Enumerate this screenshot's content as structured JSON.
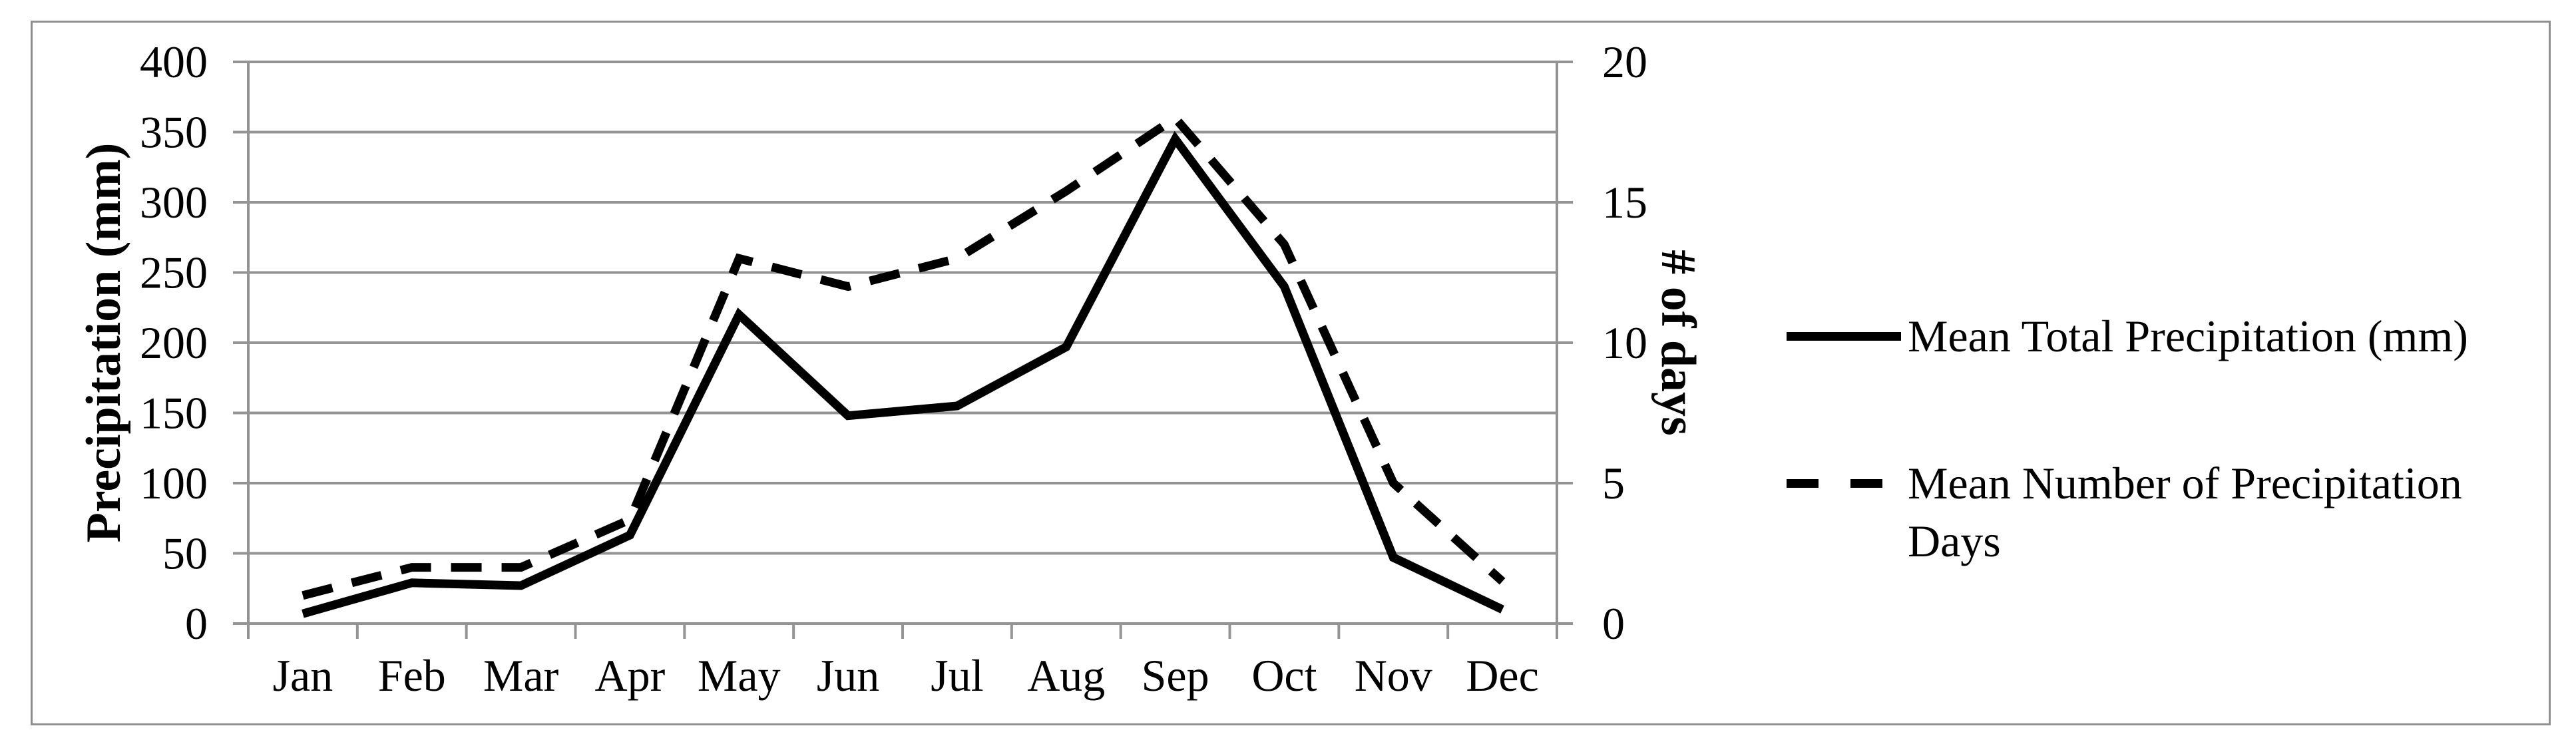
{
  "chart_data": {
    "type": "line",
    "title": "",
    "categories": [
      "Jan",
      "Feb",
      "Mar",
      "Apr",
      "May",
      "Jun",
      "Jul",
      "Aug",
      "Sep",
      "Oct",
      "Nov",
      "Dec"
    ],
    "series": [
      {
        "name": "Mean Total Precipitation (mm)",
        "axis": "left",
        "line_style": "solid",
        "values": [
          7,
          29,
          27,
          63,
          220,
          148,
          155,
          197,
          345,
          240,
          47,
          10
        ]
      },
      {
        "name": "Mean Number of Precipitation Days",
        "axis": "right",
        "line_style": "dashed",
        "values": [
          1,
          2,
          2,
          3.7,
          13,
          12,
          13,
          15.4,
          18,
          13.5,
          5,
          1.5
        ]
      }
    ],
    "left_axis": {
      "label": "Precipitation (mm)",
      "min": 0,
      "max": 400,
      "tick_step": 50,
      "ticks": [
        0,
        50,
        100,
        150,
        200,
        250,
        300,
        350,
        400
      ]
    },
    "right_axis": {
      "label": "# of days",
      "min": 0,
      "max": 20,
      "tick_step": 5,
      "ticks": [
        0,
        5,
        10,
        15,
        20
      ]
    },
    "x_axis": {
      "label": ""
    },
    "grid": "horizontal",
    "legend_position": "right",
    "colors": {
      "series_line": "#000000",
      "gridline": "#949494",
      "frame_border": "#8f8f8f",
      "background": "#ffffff",
      "text": "#000000"
    }
  }
}
